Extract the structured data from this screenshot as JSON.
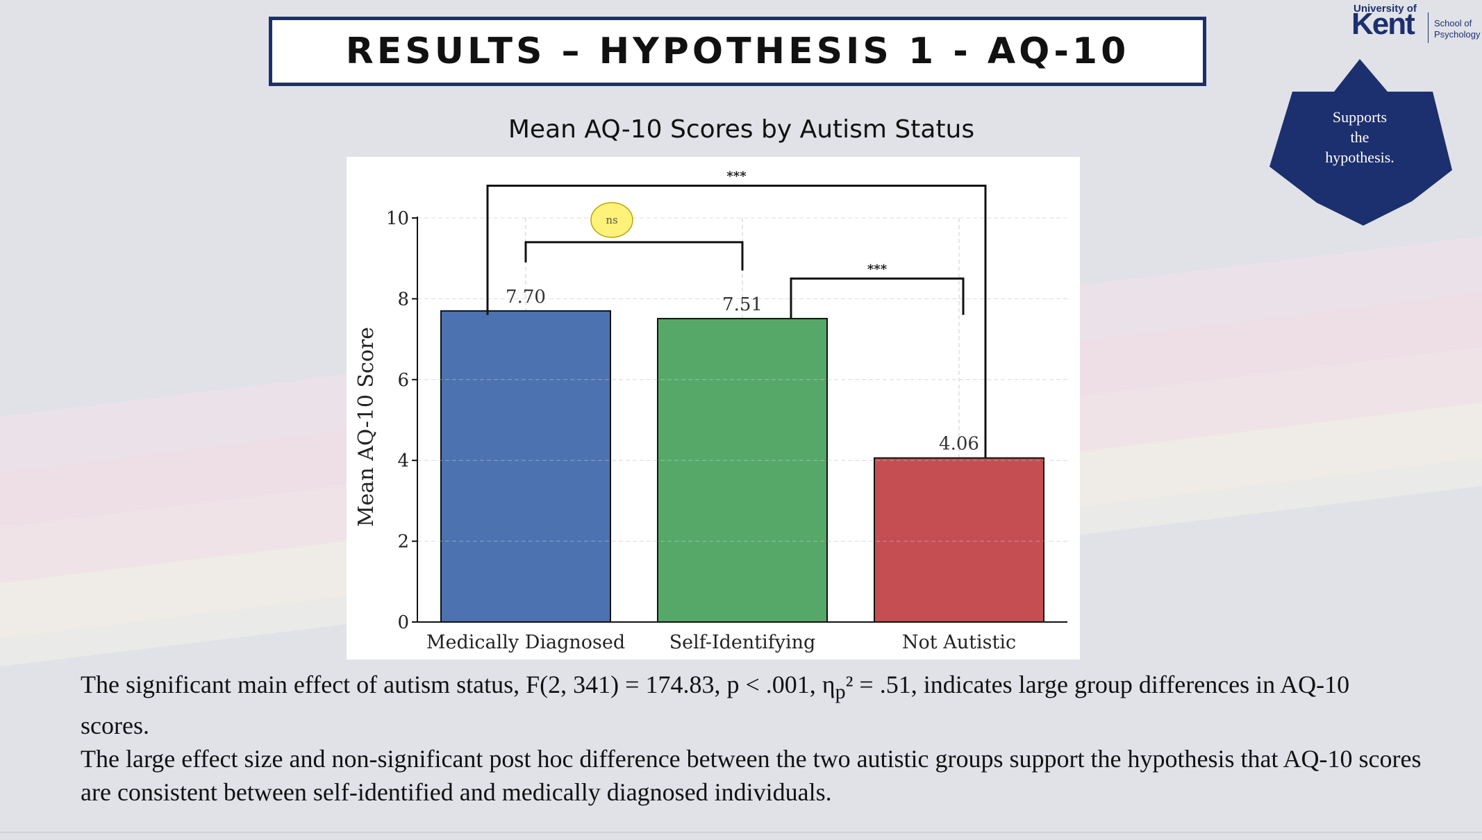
{
  "slide": {
    "title": "RESULTS – HYPOTHESIS 1 - AQ-10",
    "logo": {
      "university": "University of",
      "name": "Kent",
      "school_line1": "School of",
      "school_line2": "Psychology"
    },
    "badge": {
      "line1": "Supports",
      "line2": "the",
      "line3": "hypothesis.",
      "color": "#1c2f6e"
    },
    "paragraphs": [
      {
        "before": "The significant main effect of autism status, F(2, 341) = 174.83, p < .001, η",
        "subscript": "p",
        "after": "² = .51, indicates large group differences in AQ-10 scores."
      },
      {
        "text": "The large effect size and non-significant post hoc difference between the two autistic groups support the hypothesis that AQ-10 scores are consistent between self-identified and medically diagnosed individuals."
      }
    ]
  },
  "chart_data": {
    "type": "bar",
    "title": "Mean AQ-10 Scores by Autism Status",
    "xlabel": "",
    "ylabel": "Mean AQ-10 Score",
    "ylim": [
      0,
      10
    ],
    "yticks": [
      0,
      2,
      4,
      6,
      8,
      10
    ],
    "grid": true,
    "categories": [
      "Medically Diagnosed",
      "Self-Identifying",
      "Not Autistic"
    ],
    "values": [
      7.7,
      7.51,
      4.06
    ],
    "value_labels": [
      "7.70",
      "7.51",
      "4.06"
    ],
    "colors": [
      "#4c72b0",
      "#55a868",
      "#c44e52"
    ],
    "significance": [
      {
        "from": 0,
        "to": 1,
        "label": "ns",
        "highlight": "#fff27a"
      },
      {
        "from": 1,
        "to": 2,
        "label": "***"
      },
      {
        "from": 0,
        "to": 2,
        "label": "***"
      }
    ]
  }
}
